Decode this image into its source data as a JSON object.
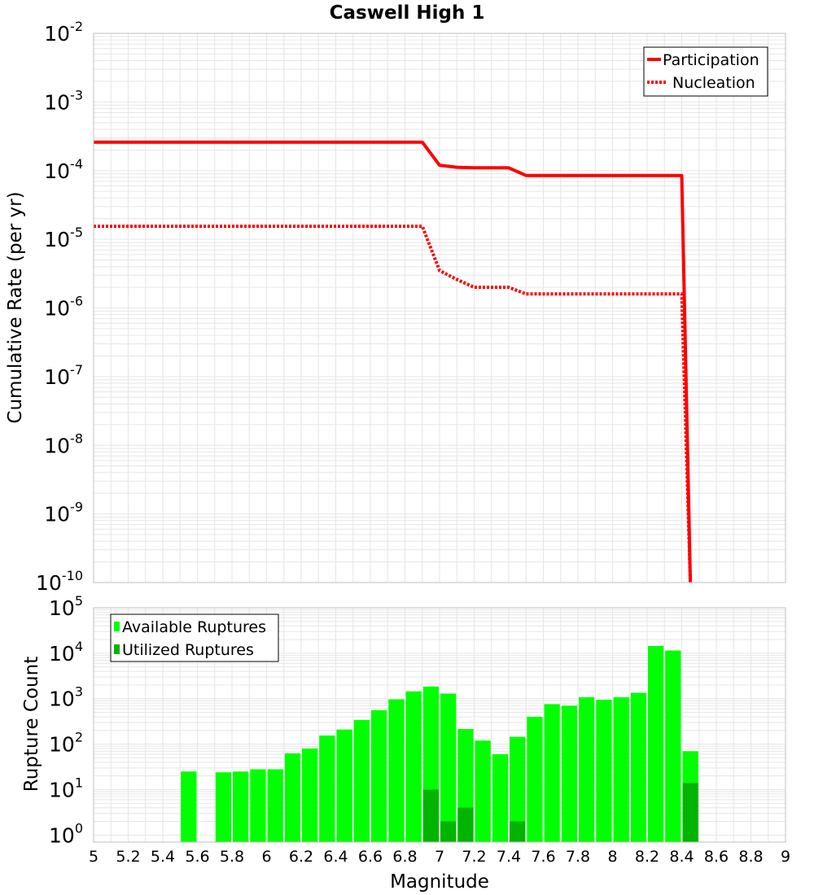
{
  "colors": {
    "participation": "#ff0000",
    "nucleation": "#ff0000",
    "available": "#00ff00",
    "utilized": "#00b400",
    "grid": "#e6e6e6",
    "frame": "#bfbfbf"
  },
  "chart_data": [
    {
      "type": "line",
      "title": "Caswell High 1",
      "xlabel": "",
      "ylabel": "Cumulative Rate (per yr)",
      "yscale": "log",
      "xlim": [
        5,
        9
      ],
      "ylim": [
        1e-10,
        0.01
      ],
      "ytick_labels": [
        {
          "base": "10",
          "exp": "-10"
        },
        {
          "base": "10",
          "exp": "-9"
        },
        {
          "base": "10",
          "exp": "-8"
        },
        {
          "base": "10",
          "exp": "-7"
        },
        {
          "base": "10",
          "exp": "-6"
        },
        {
          "base": "10",
          "exp": "-5"
        },
        {
          "base": "10",
          "exp": "-4"
        },
        {
          "base": "10",
          "exp": "-3"
        },
        {
          "base": "10",
          "exp": "-2"
        }
      ],
      "legend": {
        "location": "top-right",
        "entries": [
          "Participation",
          "Nucleation"
        ]
      },
      "series": [
        {
          "name": "Participation",
          "style": "solid",
          "x": [
            5.0,
            6.9,
            7.0,
            7.1,
            7.2,
            7.3,
            7.4,
            7.5,
            7.6,
            7.7,
            7.8,
            7.9,
            8.0,
            8.1,
            8.2,
            8.3,
            8.4,
            8.45
          ],
          "y": [
            0.00026,
            0.00026,
            0.00012,
            0.000112,
            0.00011,
            0.00011,
            0.00011,
            8.5e-05,
            8.5e-05,
            8.5e-05,
            8.5e-05,
            8.5e-05,
            8.5e-05,
            8.5e-05,
            8.5e-05,
            8.5e-05,
            8.5e-05,
            1e-10
          ]
        },
        {
          "name": "Nucleation",
          "style": "dotted",
          "x": [
            5.0,
            6.9,
            7.0,
            7.1,
            7.2,
            7.3,
            7.4,
            7.5,
            7.6,
            7.7,
            7.8,
            7.9,
            8.0,
            8.1,
            8.2,
            8.3,
            8.4,
            8.45
          ],
          "y": [
            1.55e-05,
            1.55e-05,
            3.5e-06,
            2.6e-06,
            2e-06,
            2e-06,
            2e-06,
            1.6e-06,
            1.6e-06,
            1.6e-06,
            1.6e-06,
            1.6e-06,
            1.6e-06,
            1.6e-06,
            1.6e-06,
            1.6e-06,
            1.6e-06,
            1e-10
          ]
        }
      ]
    },
    {
      "type": "bar",
      "title": "",
      "xlabel": "Magnitude",
      "ylabel": "Rupture Count",
      "yscale": "log",
      "xlim": [
        5,
        9
      ],
      "ylim": [
        0.7,
        100000
      ],
      "bin_width": 0.1,
      "xtick_labels": [
        "5",
        "5.2",
        "5.4",
        "5.6",
        "5.8",
        "6",
        "6.2",
        "6.4",
        "6.6",
        "6.8",
        "7",
        "7.2",
        "7.4",
        "7.6",
        "7.8",
        "8",
        "8.2",
        "8.4",
        "8.6",
        "8.8",
        "9"
      ],
      "ytick_labels": [
        {
          "base": "10",
          "exp": "0"
        },
        {
          "base": "10",
          "exp": "1"
        },
        {
          "base": "10",
          "exp": "2"
        },
        {
          "base": "10",
          "exp": "3"
        },
        {
          "base": "10",
          "exp": "4"
        },
        {
          "base": "10",
          "exp": "5"
        }
      ],
      "legend": {
        "location": "top-left",
        "entries": [
          "Available Ruptures",
          "Utilized Ruptures"
        ]
      },
      "series": [
        {
          "name": "Available Ruptures",
          "x": [
            5.55,
            5.75,
            5.85,
            5.95,
            6.05,
            6.15,
            6.25,
            6.35,
            6.45,
            6.55,
            6.65,
            6.75,
            6.85,
            6.95,
            7.05,
            7.15,
            7.25,
            7.35,
            7.45,
            7.55,
            7.65,
            7.75,
            7.85,
            7.95,
            8.05,
            8.15,
            8.25,
            8.35,
            8.45
          ],
          "values": [
            25,
            24,
            25,
            28,
            28,
            63,
            80,
            155,
            210,
            340,
            560,
            970,
            1450,
            1850,
            1300,
            215,
            120,
            60,
            145,
            400,
            760,
            700,
            1080,
            950,
            1080,
            1350,
            14500,
            11500,
            70
          ]
        },
        {
          "name": "Utilized Ruptures",
          "x": [
            6.95,
            7.05,
            7.15,
            7.45,
            8.45
          ],
          "values": [
            10,
            2,
            4,
            2,
            14
          ]
        }
      ]
    }
  ]
}
